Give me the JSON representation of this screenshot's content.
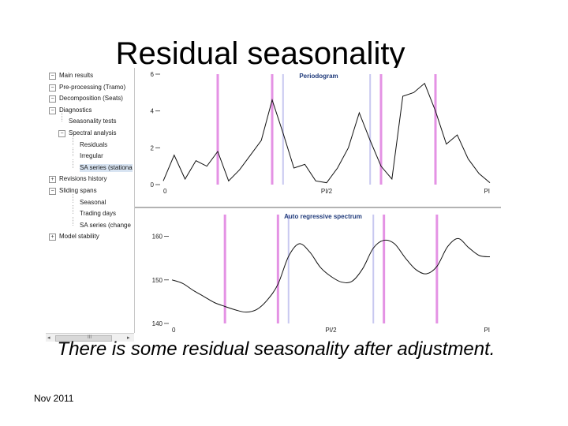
{
  "slide": {
    "title": "Residual seasonality",
    "caption": "There is some residual seasonality after adjustment.",
    "footer": "Nov 2011"
  },
  "tree": {
    "items": [
      {
        "label": "Main results",
        "level": 0,
        "expander": "minus"
      },
      {
        "label": "Pre-processing (Tramo)",
        "level": 0,
        "expander": "minus"
      },
      {
        "label": "Decomposition (Seats)",
        "level": 0,
        "expander": "minus"
      },
      {
        "label": "Diagnostics",
        "level": 0,
        "expander": "minus"
      },
      {
        "label": "Seasonality tests",
        "level": 1,
        "expander": "none"
      },
      {
        "label": "Spectral analysis",
        "level": 1,
        "expander": "minus"
      },
      {
        "label": "Residuals",
        "level": 2,
        "expander": "none"
      },
      {
        "label": "Irregular",
        "level": 2,
        "expander": "none"
      },
      {
        "label": "SA series (stationa",
        "level": 2,
        "expander": "none",
        "selected": true
      },
      {
        "label": "Revisions history",
        "level": 0,
        "expander": "plus"
      },
      {
        "label": "Sliding spans",
        "level": 0,
        "expander": "minus"
      },
      {
        "label": "Seasonal",
        "level": 2,
        "expander": "none"
      },
      {
        "label": "Trading days",
        "level": 2,
        "expander": "none"
      },
      {
        "label": "SA series (change",
        "level": 2,
        "expander": "none"
      },
      {
        "label": "Model stability",
        "level": 0,
        "expander": "plus"
      }
    ],
    "scroll_grip": "III",
    "scroll_left": "◂",
    "scroll_right": "▸"
  },
  "colors": {
    "seasonal_line": "#e080e0",
    "td_line": "#c8c8f0",
    "curve": "#111111",
    "selected_bg": "#d8e4f2"
  },
  "chart_data": [
    {
      "type": "line",
      "title": "Periodogram",
      "xlabel": "",
      "ylabel": "",
      "xlim": [
        0,
        3.1416
      ],
      "ylim": [
        0,
        6
      ],
      "y_ticks": [
        0,
        2,
        4,
        6
      ],
      "x_tick_labels": [
        "0",
        "PI/2",
        "PI"
      ],
      "x": [
        0.0,
        0.1047,
        0.2094,
        0.3142,
        0.4189,
        0.5236,
        0.6283,
        0.733,
        0.8378,
        0.9425,
        1.0472,
        1.1519,
        1.2566,
        1.3614,
        1.4661,
        1.5708,
        1.6755,
        1.7802,
        1.885,
        1.9897,
        2.0944,
        2.1991,
        2.3038,
        2.4086,
        2.5133,
        2.618,
        2.7227,
        2.8274,
        2.9322,
        3.0369,
        3.1416
      ],
      "values": [
        0.2,
        1.6,
        0.3,
        1.3,
        1.0,
        1.8,
        0.2,
        0.8,
        1.6,
        2.4,
        4.6,
        2.8,
        0.9,
        1.1,
        0.2,
        0.1,
        0.9,
        2.0,
        3.9,
        2.4,
        1.0,
        0.3,
        4.8,
        5.0,
        5.5,
        4.0,
        2.2,
        2.7,
        1.4,
        0.6,
        0.1
      ],
      "seasonal_freqs": [
        0.5236,
        1.0472,
        2.0944,
        2.618
      ],
      "td_freqs": [
        1.1519,
        1.9897
      ]
    },
    {
      "type": "line",
      "title": "Auto regressive spectrum",
      "xlabel": "",
      "ylabel": "",
      "xlim": [
        0,
        3.1416
      ],
      "ylim": [
        140,
        165
      ],
      "y_ticks": [
        140,
        150,
        160
      ],
      "x_tick_labels": [
        "0",
        "PI/2",
        "PI"
      ],
      "x": [
        0.0,
        0.1047,
        0.2094,
        0.3142,
        0.4189,
        0.5236,
        0.6283,
        0.733,
        0.8378,
        0.9425,
        1.0472,
        1.1519,
        1.2566,
        1.3614,
        1.4661,
        1.5708,
        1.6755,
        1.7802,
        1.885,
        1.9897,
        2.0944,
        2.1991,
        2.3038,
        2.4086,
        2.5133,
        2.618,
        2.7227,
        2.8274,
        2.9322,
        3.0369,
        3.1416
      ],
      "values": [
        150.0,
        149.2,
        147.6,
        146.2,
        144.8,
        143.9,
        143.1,
        142.6,
        143.2,
        145.4,
        149.0,
        155.4,
        158.3,
        156.4,
        152.9,
        150.8,
        149.5,
        149.7,
        152.6,
        157.3,
        159.1,
        158.3,
        155.1,
        152.4,
        151.4,
        153.1,
        157.6,
        159.5,
        157.4,
        155.6,
        155.3
      ],
      "seasonal_freqs": [
        0.5236,
        1.0472,
        2.0944,
        2.618
      ],
      "td_freqs": [
        1.1519,
        1.9897
      ]
    }
  ]
}
